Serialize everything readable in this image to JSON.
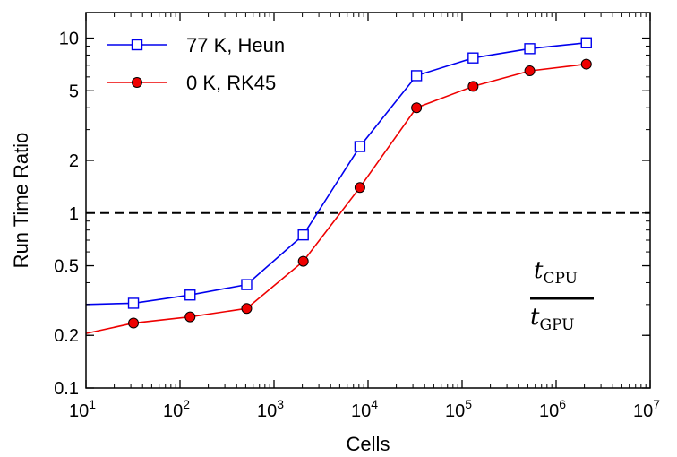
{
  "chart_data": {
    "type": "line",
    "xlabel": "Cells",
    "ylabel": "Run Time Ratio",
    "xscale": "log",
    "yscale": "log",
    "xlim": [
      10,
      10000000
    ],
    "ylim": [
      0.1,
      14
    ],
    "x_ticks": [
      {
        "value": 10,
        "base": "10",
        "exp": "1"
      },
      {
        "value": 100,
        "base": "10",
        "exp": "2"
      },
      {
        "value": 1000,
        "base": "10",
        "exp": "3"
      },
      {
        "value": 10000,
        "base": "10",
        "exp": "4"
      },
      {
        "value": 100000,
        "base": "10",
        "exp": "5"
      },
      {
        "value": 1000000,
        "base": "10",
        "exp": "6"
      },
      {
        "value": 10000000,
        "base": "10",
        "exp": "7"
      }
    ],
    "y_ticks": [
      {
        "value": 0.1,
        "label": "0.1"
      },
      {
        "value": 0.2,
        "label": "0.2"
      },
      {
        "value": 0.5,
        "label": "0.5"
      },
      {
        "value": 1,
        "label": "1"
      },
      {
        "value": 2,
        "label": "2"
      },
      {
        "value": 5,
        "label": "5"
      },
      {
        "value": 10,
        "label": "10"
      }
    ],
    "reference_line": {
      "y": 1,
      "style": "dashed"
    },
    "legend_position": "top-left",
    "series": [
      {
        "name": "77 K, Heun",
        "color": "#0000ee",
        "marker": "open-square",
        "x": [
          10,
          32,
          128,
          512,
          2048,
          8192,
          32768,
          131072,
          524288,
          2097152
        ],
        "y": [
          0.3,
          0.305,
          0.34,
          0.39,
          0.75,
          2.4,
          6.1,
          7.7,
          8.7,
          9.4
        ]
      },
      {
        "name": "0 K, RK45",
        "color": "#ee0000",
        "marker": "filled-circle",
        "x": [
          10,
          32,
          128,
          512,
          2048,
          8192,
          32768,
          131072,
          524288,
          2097152
        ],
        "y": [
          0.205,
          0.235,
          0.255,
          0.285,
          0.53,
          1.4,
          4.0,
          5.3,
          6.5,
          7.1
        ]
      }
    ],
    "annotation": {
      "numerator_symbol": "t",
      "numerator_sub": "CPU",
      "denominator_symbol": "t",
      "denominator_sub": "GPU"
    }
  }
}
